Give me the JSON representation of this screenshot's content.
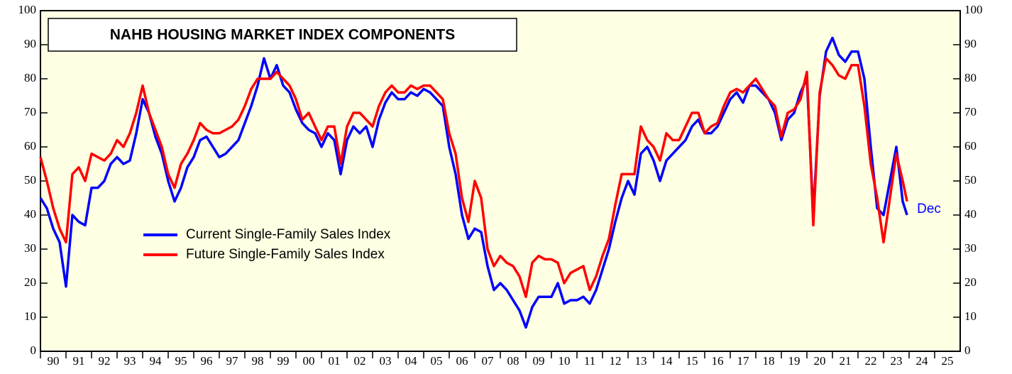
{
  "chart_data": {
    "type": "line",
    "title": "NAHB HOUSING MARKET INDEX COMPONENTS",
    "annotation": "Dec",
    "xlim": [
      1990,
      2026
    ],
    "ylim": [
      0,
      100
    ],
    "yticks": [
      0,
      10,
      20,
      30,
      40,
      50,
      60,
      70,
      80,
      90,
      100
    ],
    "xticks": [
      {
        "value": 1990.5,
        "label": "90"
      },
      {
        "value": 1991.5,
        "label": "91"
      },
      {
        "value": 1992.5,
        "label": "92"
      },
      {
        "value": 1993.5,
        "label": "93"
      },
      {
        "value": 1994.5,
        "label": "94"
      },
      {
        "value": 1995.5,
        "label": "95"
      },
      {
        "value": 1996.5,
        "label": "96"
      },
      {
        "value": 1997.5,
        "label": "97"
      },
      {
        "value": 1998.5,
        "label": "98"
      },
      {
        "value": 1999.5,
        "label": "99"
      },
      {
        "value": 2000.5,
        "label": "00"
      },
      {
        "value": 2001.5,
        "label": "01"
      },
      {
        "value": 2002.5,
        "label": "02"
      },
      {
        "value": 2003.5,
        "label": "03"
      },
      {
        "value": 2004.5,
        "label": "04"
      },
      {
        "value": 2005.5,
        "label": "05"
      },
      {
        "value": 2006.5,
        "label": "06"
      },
      {
        "value": 2007.5,
        "label": "07"
      },
      {
        "value": 2008.5,
        "label": "08"
      },
      {
        "value": 2009.5,
        "label": "09"
      },
      {
        "value": 2010.5,
        "label": "10"
      },
      {
        "value": 2011.5,
        "label": "11"
      },
      {
        "value": 2012.5,
        "label": "12"
      },
      {
        "value": 2013.5,
        "label": "13"
      },
      {
        "value": 2014.5,
        "label": "14"
      },
      {
        "value": 2015.5,
        "label": "15"
      },
      {
        "value": 2016.5,
        "label": "16"
      },
      {
        "value": 2017.5,
        "label": "17"
      },
      {
        "value": 2018.5,
        "label": "18"
      },
      {
        "value": 2019.5,
        "label": "19"
      },
      {
        "value": 2020.5,
        "label": "20"
      },
      {
        "value": 2021.5,
        "label": "21"
      },
      {
        "value": 2022.5,
        "label": "22"
      },
      {
        "value": 2023.5,
        "label": "23"
      },
      {
        "value": 2024.5,
        "label": "24"
      },
      {
        "value": 2025.5,
        "label": "25"
      }
    ],
    "x": [
      1990,
      1990.25,
      1990.5,
      1990.75,
      1991,
      1991.25,
      1991.5,
      1991.75,
      1992,
      1992.25,
      1992.5,
      1992.75,
      1993,
      1993.25,
      1993.5,
      1993.75,
      1994,
      1994.25,
      1994.5,
      1994.75,
      1995,
      1995.25,
      1995.5,
      1995.75,
      1996,
      1996.25,
      1996.5,
      1996.75,
      1997,
      1997.25,
      1997.5,
      1997.75,
      1998,
      1998.25,
      1998.5,
      1998.75,
      1999,
      1999.25,
      1999.5,
      1999.75,
      2000,
      2000.25,
      2000.5,
      2000.75,
      2001,
      2001.25,
      2001.5,
      2001.75,
      2002,
      2002.25,
      2002.5,
      2002.75,
      2003,
      2003.25,
      2003.5,
      2003.75,
      2004,
      2004.25,
      2004.5,
      2004.75,
      2005,
      2005.25,
      2005.5,
      2005.75,
      2006,
      2006.25,
      2006.5,
      2006.75,
      2007,
      2007.25,
      2007.5,
      2007.75,
      2008,
      2008.25,
      2008.5,
      2008.75,
      2009,
      2009.25,
      2009.5,
      2009.75,
      2010,
      2010.25,
      2010.5,
      2010.75,
      2011,
      2011.25,
      2011.5,
      2011.75,
      2012,
      2012.25,
      2012.5,
      2012.75,
      2013,
      2013.25,
      2013.5,
      2013.75,
      2014,
      2014.25,
      2014.5,
      2014.75,
      2015,
      2015.25,
      2015.5,
      2015.75,
      2016,
      2016.25,
      2016.5,
      2016.75,
      2017,
      2017.25,
      2017.5,
      2017.75,
      2018,
      2018.25,
      2018.5,
      2018.75,
      2019,
      2019.25,
      2019.5,
      2019.75,
      2020,
      2020.25,
      2020.5,
      2020.75,
      2021,
      2021.25,
      2021.5,
      2021.75,
      2022,
      2022.25,
      2022.5,
      2022.75,
      2023,
      2023.25,
      2023.5,
      2023.75,
      2023.92
    ],
    "series": [
      {
        "name": "Current Single-Family Sales Index",
        "color": "#0000ff",
        "values": [
          45,
          42,
          36,
          32,
          19,
          40,
          38,
          37,
          48,
          48,
          50,
          55,
          57,
          55,
          56,
          64,
          74,
          70,
          63,
          58,
          50,
          44,
          48,
          54,
          57,
          62,
          63,
          60,
          57,
          58,
          60,
          62,
          67,
          72,
          78,
          86,
          80,
          84,
          78,
          76,
          71,
          67,
          65,
          64,
          60,
          64,
          62,
          52,
          62,
          66,
          64,
          66,
          60,
          68,
          73,
          76,
          74,
          74,
          76,
          75,
          77,
          76,
          74,
          72,
          60,
          52,
          40,
          33,
          36,
          35,
          25,
          18,
          20,
          18,
          15,
          12,
          7,
          13,
          16,
          16,
          16,
          20,
          14,
          15,
          15,
          16,
          14,
          18,
          24,
          30,
          38,
          45,
          50,
          46,
          58,
          60,
          56,
          50,
          56,
          58,
          60,
          62,
          66,
          68,
          64,
          64,
          66,
          70,
          74,
          76,
          73,
          78,
          78,
          76,
          74,
          70,
          62,
          68,
          70,
          76,
          80,
          40,
          75,
          88,
          92,
          87,
          85,
          88,
          88,
          80,
          60,
          42,
          40,
          50,
          60,
          44,
          40
        ]
      },
      {
        "name": "Future Single-Family Sales Index",
        "color": "#ff0000",
        "values": [
          57,
          50,
          42,
          36,
          32,
          52,
          54,
          50,
          58,
          57,
          56,
          58,
          62,
          60,
          64,
          70,
          78,
          70,
          65,
          60,
          52,
          48,
          55,
          58,
          62,
          67,
          65,
          64,
          64,
          65,
          66,
          68,
          72,
          77,
          80,
          80,
          80,
          82,
          80,
          78,
          74,
          68,
          70,
          66,
          62,
          66,
          66,
          55,
          66,
          70,
          70,
          68,
          66,
          72,
          76,
          78,
          76,
          76,
          78,
          77,
          78,
          78,
          76,
          74,
          64,
          58,
          45,
          38,
          50,
          45,
          30,
          25,
          28,
          26,
          25,
          22,
          16,
          26,
          28,
          27,
          27,
          26,
          20,
          23,
          24,
          25,
          18,
          22,
          28,
          33,
          43,
          52,
          52,
          52,
          66,
          62,
          60,
          56,
          64,
          62,
          62,
          66,
          70,
          70,
          64,
          66,
          67,
          72,
          76,
          77,
          76,
          78,
          80,
          77,
          74,
          72,
          63,
          70,
          71,
          74,
          82,
          37,
          76,
          86,
          84,
          81,
          80,
          84,
          84,
          72,
          55,
          45,
          32,
          45,
          58,
          50,
          44
        ]
      }
    ]
  }
}
